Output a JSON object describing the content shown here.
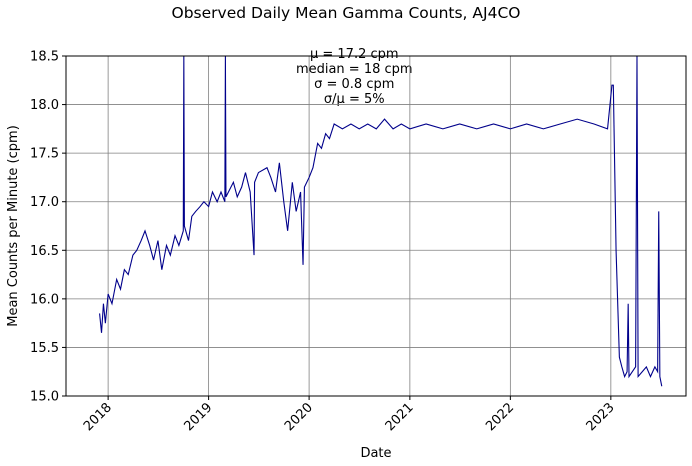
{
  "chart_data": {
    "type": "line",
    "title": "Observed Daily Mean Gamma Counts, AJ4CO",
    "subtitle_stats": [
      "μ = 17.2 cpm",
      "median = 18 cpm",
      "σ = 0.8 cpm",
      "σ/μ = 5%"
    ],
    "xlabel": "Date",
    "ylabel": "Mean Counts per Minute (cpm)",
    "xlim": [
      "2017-08-01",
      "2023-10-01"
    ],
    "ylim": [
      15.0,
      18.5
    ],
    "xticks": [
      {
        "label": "2018",
        "date": "2018-01-01"
      },
      {
        "label": "2019",
        "date": "2019-01-01"
      },
      {
        "label": "2020",
        "date": "2020-01-01"
      },
      {
        "label": "2021",
        "date": "2021-01-01"
      },
      {
        "label": "2022",
        "date": "2022-01-01"
      },
      {
        "label": "2023",
        "date": "2023-01-01"
      }
    ],
    "yticks": [
      "15.0",
      "15.5",
      "16.0",
      "16.5",
      "17.0",
      "17.5",
      "18.0",
      "18.5"
    ],
    "grid": true,
    "series": [
      {
        "color": "#00008b",
        "points": [
          [
            "2017-12-01",
            15.85
          ],
          [
            "2017-12-08",
            15.65
          ],
          [
            "2017-12-15",
            15.95
          ],
          [
            "2017-12-22",
            15.75
          ],
          [
            "2018-01-01",
            16.05
          ],
          [
            "2018-01-15",
            15.95
          ],
          [
            "2018-02-01",
            16.2
          ],
          [
            "2018-02-15",
            16.1
          ],
          [
            "2018-03-01",
            16.3
          ],
          [
            "2018-03-15",
            16.25
          ],
          [
            "2018-04-01",
            16.45
          ],
          [
            "2018-04-15",
            16.5
          ],
          [
            "2018-05-01",
            16.6
          ],
          [
            "2018-05-15",
            16.7
          ],
          [
            "2018-06-01",
            16.55
          ],
          [
            "2018-06-15",
            16.4
          ],
          [
            "2018-07-01",
            16.6
          ],
          [
            "2018-07-15",
            16.3
          ],
          [
            "2018-08-01",
            16.55
          ],
          [
            "2018-08-15",
            16.45
          ],
          [
            "2018-09-01",
            16.65
          ],
          [
            "2018-09-15",
            16.55
          ],
          [
            "2018-10-01",
            16.7
          ],
          [
            "2018-10-03",
            18.5
          ],
          [
            "2018-10-05",
            16.75
          ],
          [
            "2018-10-20",
            16.6
          ],
          [
            "2018-11-01",
            16.85
          ],
          [
            "2018-11-15",
            16.9
          ],
          [
            "2018-12-01",
            16.95
          ],
          [
            "2018-12-15",
            17.0
          ],
          [
            "2019-01-01",
            16.95
          ],
          [
            "2019-01-15",
            17.1
          ],
          [
            "2019-02-01",
            17.0
          ],
          [
            "2019-02-15",
            17.1
          ],
          [
            "2019-03-01",
            17.0
          ],
          [
            "2019-03-03",
            18.5
          ],
          [
            "2019-03-05",
            17.05
          ],
          [
            "2019-04-01",
            17.2
          ],
          [
            "2019-04-15",
            17.05
          ],
          [
            "2019-05-01",
            17.15
          ],
          [
            "2019-05-15",
            17.3
          ],
          [
            "2019-06-01",
            17.1
          ],
          [
            "2019-06-15",
            16.45
          ],
          [
            "2019-06-17",
            17.2
          ],
          [
            "2019-07-01",
            17.3
          ],
          [
            "2019-08-01",
            17.35
          ],
          [
            "2019-08-15",
            17.25
          ],
          [
            "2019-09-01",
            17.1
          ],
          [
            "2019-09-15",
            17.4
          ],
          [
            "2019-10-01",
            17.0
          ],
          [
            "2019-10-15",
            16.7
          ],
          [
            "2019-11-01",
            17.2
          ],
          [
            "2019-11-15",
            16.9
          ],
          [
            "2019-12-01",
            17.1
          ],
          [
            "2019-12-10",
            16.35
          ],
          [
            "2019-12-15",
            17.15
          ],
          [
            "2020-01-01",
            17.25
          ],
          [
            "2020-01-15",
            17.35
          ],
          [
            "2020-02-01",
            17.6
          ],
          [
            "2020-02-15",
            17.55
          ],
          [
            "2020-03-01",
            17.7
          ],
          [
            "2020-03-15",
            17.65
          ],
          [
            "2020-04-01",
            17.8
          ],
          [
            "2020-05-01",
            17.75
          ],
          [
            "2020-06-01",
            17.8
          ],
          [
            "2020-07-01",
            17.75
          ],
          [
            "2020-08-01",
            17.8
          ],
          [
            "2020-09-01",
            17.75
          ],
          [
            "2020-10-01",
            17.85
          ],
          [
            "2020-11-01",
            17.75
          ],
          [
            "2020-12-01",
            17.8
          ],
          [
            "2021-01-01",
            17.75
          ],
          [
            "2021-03-01",
            17.8
          ],
          [
            "2021-05-01",
            17.75
          ],
          [
            "2021-07-01",
            17.8
          ],
          [
            "2021-09-01",
            17.75
          ],
          [
            "2021-11-01",
            17.8
          ],
          [
            "2022-01-01",
            17.75
          ],
          [
            "2022-03-01",
            17.8
          ],
          [
            "2022-05-01",
            17.75
          ],
          [
            "2022-07-01",
            17.8
          ],
          [
            "2022-09-01",
            17.85
          ],
          [
            "2022-11-01",
            17.8
          ],
          [
            "2022-12-20",
            17.75
          ],
          [
            "2023-01-05",
            18.2
          ],
          [
            "2023-01-10",
            18.2
          ],
          [
            "2023-01-20",
            16.5
          ],
          [
            "2023-02-01",
            15.4
          ],
          [
            "2023-02-10",
            15.3
          ],
          [
            "2023-02-20",
            15.2
          ],
          [
            "2023-03-01",
            15.25
          ],
          [
            "2023-03-05",
            15.95
          ],
          [
            "2023-03-08",
            15.2
          ],
          [
            "2023-03-20",
            15.25
          ],
          [
            "2023-04-01",
            15.3
          ],
          [
            "2023-04-06",
            18.5
          ],
          [
            "2023-04-10",
            15.2
          ],
          [
            "2023-04-25",
            15.25
          ],
          [
            "2023-05-10",
            15.3
          ],
          [
            "2023-05-25",
            15.2
          ],
          [
            "2023-06-10",
            15.3
          ],
          [
            "2023-06-20",
            15.25
          ],
          [
            "2023-06-24",
            16.9
          ],
          [
            "2023-06-28",
            15.2
          ],
          [
            "2023-07-05",
            15.1
          ]
        ]
      }
    ]
  }
}
